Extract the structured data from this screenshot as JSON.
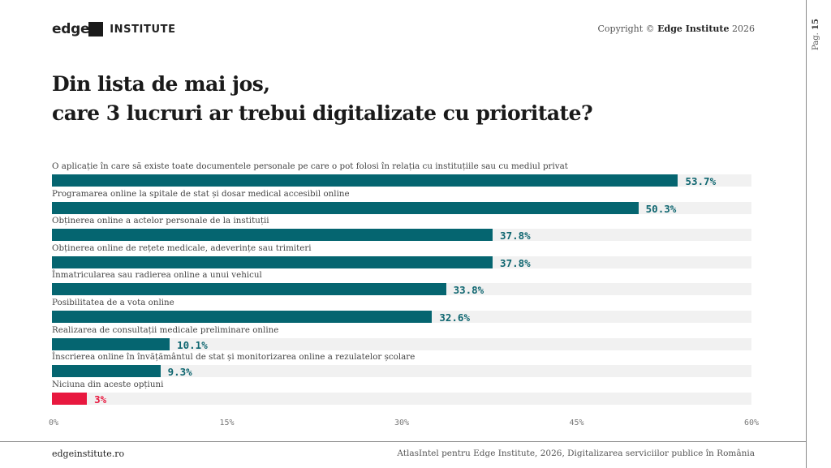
{
  "header": {
    "logo_edge": "edge",
    "logo_institute": "INSTITUTE",
    "copyright_prefix": "Copyright ©",
    "copyright_brand": "Edge Institute",
    "copyright_year": "2026",
    "page_label": "Pag.",
    "page_number": "15"
  },
  "footer": {
    "website": "edgeinstitute.ro",
    "source": "AtlasIntel pentru Edge Institute, 2026, Digitalizarea serviciilor publice în România"
  },
  "colors": {
    "bar": "#056570",
    "bar_highlight": "#e8183f",
    "value_text": "#0f6670",
    "value_text_highlight": "#e8183f",
    "track": "#f1f1f1"
  },
  "chart_data": {
    "type": "bar",
    "orientation": "horizontal",
    "title_line1": "Din lista de mai jos,",
    "title_line2": "care 3 lucruri ar trebui digitalizate cu prioritate?",
    "categories": [
      "O aplicație în care să existe toate documentele personale pe care o pot folosi în relația cu instituțiile sau cu mediul privat",
      "Programarea online la spitale de stat și dosar medical accesibil online",
      "Obținerea online a actelor personale de la instituții",
      "Obținerea online de rețete medicale, adeverințe sau trimiteri",
      "Înmatricularea sau radierea online a unui vehicul",
      "Posibilitatea de a vota online",
      "Realizarea de consultații medicale preliminare online",
      "Înscrierea online în învățământul de stat și monitorizarea online a rezulatelor școlare",
      "Niciuna din aceste opțiuni"
    ],
    "values": [
      53.7,
      50.3,
      37.8,
      37.8,
      33.8,
      32.6,
      10.1,
      9.3,
      3
    ],
    "value_labels": [
      "53.7%",
      "50.3%",
      "37.8%",
      "37.8%",
      "33.8%",
      "32.6%",
      "10.1%",
      "9.3%",
      "3%"
    ],
    "highlight": [
      false,
      false,
      false,
      false,
      false,
      false,
      false,
      false,
      true
    ],
    "xlim": [
      0,
      60
    ],
    "xticks": [
      0,
      15,
      30,
      45,
      60
    ],
    "xtick_labels": [
      "0%",
      "15%",
      "30%",
      "45%",
      "60%"
    ],
    "xlabel": "",
    "ylabel": "",
    "grid": false,
    "legend": "none"
  }
}
